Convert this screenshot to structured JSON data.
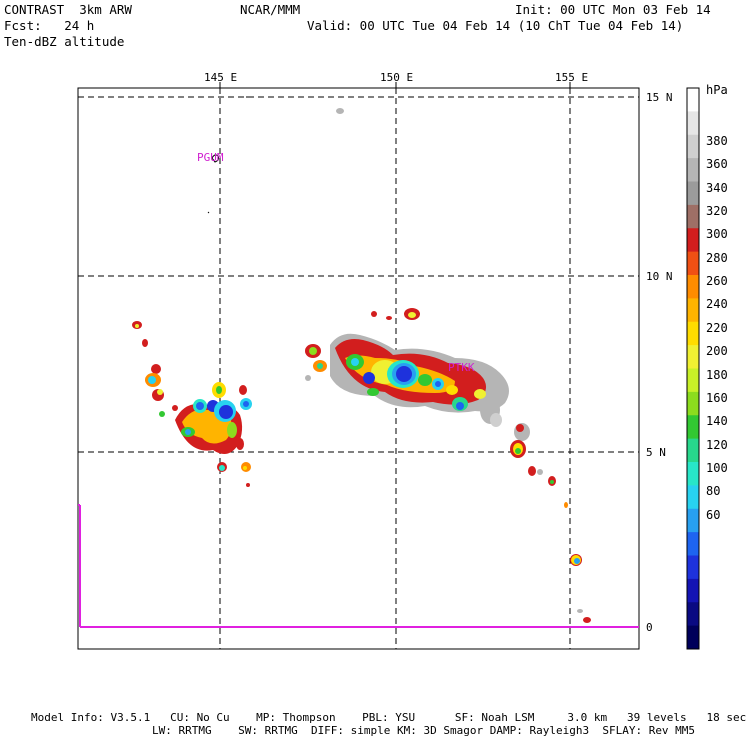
{
  "header": {
    "left_line1": "CONTRAST  3km ARW",
    "left_line2": "Fcst:   24 h",
    "left_line3": "Ten-dBZ altitude",
    "center": "NCAR/MMM",
    "right_line1": "Init: 00 UTC Mon 03 Feb 14",
    "right_line2": "Valid: 00 UTC Tue 04 Feb 14 (10 ChT Tue 04 Feb 14)"
  },
  "map": {
    "lon_labels": [
      "145 E",
      "150 E",
      "155 E"
    ],
    "lat_labels": [
      "15 N",
      "10 N",
      "5 N",
      "0"
    ],
    "stations": [
      {
        "label": "PGUM"
      },
      {
        "label": "PTKK"
      }
    ]
  },
  "colorbar": {
    "unit": "hPa",
    "labels": [
      "380",
      "360",
      "340",
      "320",
      "300",
      "280",
      "260",
      "240",
      "220",
      "200",
      "180",
      "160",
      "140",
      "120",
      "100",
      "80",
      "60"
    ],
    "colors": [
      "#ffffff",
      "#e6e6e6",
      "#cfcfcf",
      "#b5b5b5",
      "#9b9b9b",
      "#9e6f66",
      "#d21e1e",
      "#f05014",
      "#ff8c00",
      "#ffb400",
      "#ffdc00",
      "#f0f032",
      "#c8f028",
      "#8cdc1e",
      "#32c832",
      "#28d78c",
      "#28e6c8",
      "#28d2f0",
      "#28a0f0",
      "#1e64f0",
      "#1e32dc",
      "#1414b4",
      "#0a0a82",
      "#00005a"
    ]
  },
  "footer": {
    "line1": "Model Info: V3.5.1   CU: No Cu    MP: Thompson    PBL: YSU      SF: Noah LSM     3.0 km   39 levels   18 sec",
    "line2": "LW: RRTMG    SW: RRTMG  DIFF: simple KM: 3D Smagor DAMP: Rayleigh3  SFLAY: Rev MM5"
  }
}
